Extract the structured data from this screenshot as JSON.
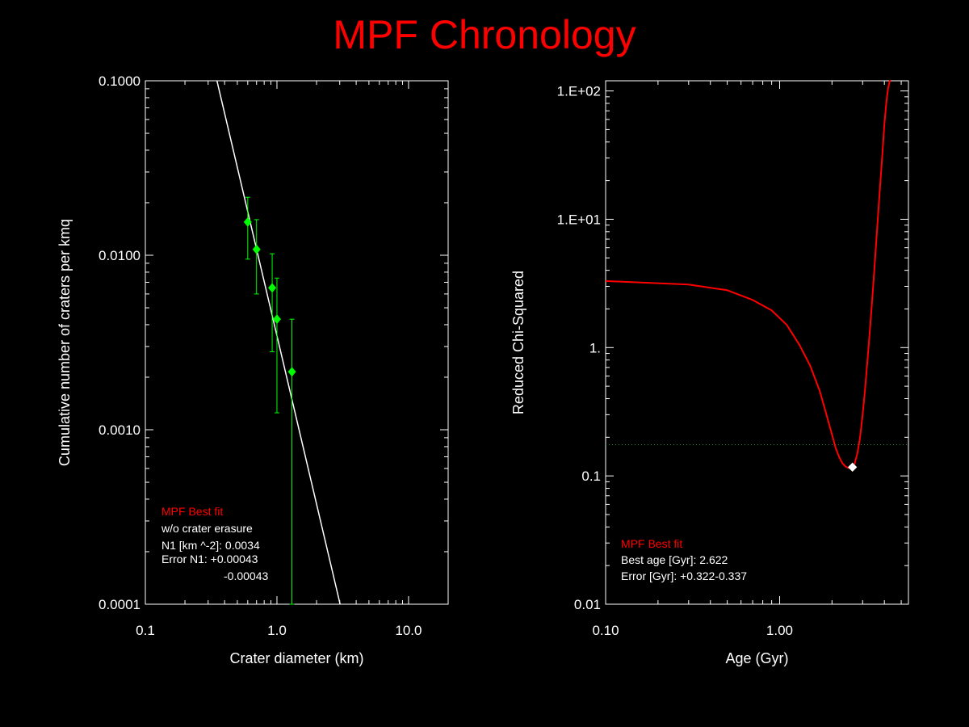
{
  "title": "MPF Chronology",
  "colors": {
    "background": "#000000",
    "title": "#ff0000",
    "axes": "#ffffff",
    "points": "#00ff00",
    "fit_line": "#ffffff",
    "chi_curve": "#ff0000",
    "threshold": "#2a8a2a",
    "min_marker": "#ffffff",
    "legend_heading": "#ff0000",
    "legend_text": "#ffffff"
  },
  "chart_data": [
    {
      "type": "scatter",
      "xlabel": "Crater diameter (km)",
      "ylabel": "Cumulative number of craters per kmq",
      "x_scale": "log",
      "y_scale": "log",
      "xlim": [
        0.1,
        20
      ],
      "ylim": [
        0.0001,
        0.1
      ],
      "x_ticks": [
        {
          "value": 0.1,
          "label": "0.1"
        },
        {
          "value": 1.0,
          "label": "1.0"
        },
        {
          "value": 10.0,
          "label": "10.0"
        }
      ],
      "y_ticks": [
        {
          "value": 0.0001,
          "label": "0.0001"
        },
        {
          "value": 0.001,
          "label": "0.0010"
        },
        {
          "value": 0.01,
          "label": "0.0100"
        },
        {
          "value": 0.1,
          "label": "0.1000"
        }
      ],
      "points": [
        {
          "x": 0.6,
          "y": 0.0155,
          "y_err_low": 0.0095,
          "y_err_high": 0.0215
        },
        {
          "x": 0.7,
          "y": 0.0108,
          "y_err_low": 0.006,
          "y_err_high": 0.016
        },
        {
          "x": 0.92,
          "y": 0.0065,
          "y_err_low": 0.0028,
          "y_err_high": 0.0102
        },
        {
          "x": 1.0,
          "y": 0.0043,
          "y_err_low": 0.00125,
          "y_err_high": 0.0074
        },
        {
          "x": 1.3,
          "y": 0.00215,
          "y_err_low": 0.0001,
          "y_err_high": 0.0043
        }
      ],
      "fit_line": {
        "x": [
          0.35,
          3.02
        ],
        "y": [
          0.1,
          0.0001
        ]
      },
      "legend": {
        "placement": "bottom-left",
        "heading": "MPF Best fit",
        "lines": [
          "w/o crater erasure",
          "N1 [km ^-2]: 0.0034",
          "Error N1: +0.00043",
          "-0.00043"
        ]
      }
    },
    {
      "type": "line",
      "xlabel": "Age (Gyr)",
      "ylabel": "Reduced Chi-Squared",
      "x_scale": "log",
      "y_scale": "log",
      "xlim": [
        0.1,
        5.5
      ],
      "ylim": [
        0.01,
        120
      ],
      "x_ticks": [
        {
          "value": 0.1,
          "label": "0.10"
        },
        {
          "value": 1.0,
          "label": "1.00"
        }
      ],
      "y_ticks": [
        {
          "value": 0.01,
          "label": "0.01"
        },
        {
          "value": 0.1,
          "label": "0.1"
        },
        {
          "value": 1,
          "label": "1."
        },
        {
          "value": 10,
          "label": "1.E+01"
        },
        {
          "value": 100,
          "label": "1.E+02"
        }
      ],
      "series": [
        {
          "x": [
            0.1,
            0.3,
            0.5,
            0.7,
            0.9,
            1.1,
            1.3,
            1.5,
            1.7,
            1.9,
            2.1,
            2.2,
            2.3,
            2.4,
            2.5,
            2.6,
            2.622,
            2.7,
            2.8,
            2.9,
            3.0,
            3.1,
            3.2,
            3.3,
            3.4,
            3.5,
            3.6,
            3.7,
            3.8,
            3.9,
            4.0,
            4.1,
            4.2,
            4.3,
            4.36
          ],
          "y": [
            3.3,
            3.1,
            2.8,
            2.35,
            1.95,
            1.5,
            1.05,
            0.72,
            0.46,
            0.27,
            0.165,
            0.14,
            0.125,
            0.118,
            0.115,
            0.116,
            0.117,
            0.125,
            0.15,
            0.2,
            0.3,
            0.48,
            0.8,
            1.35,
            2.3,
            4.0,
            7.0,
            12.0,
            20.0,
            33.0,
            55.0,
            80.0,
            105.0,
            120.0,
            125.0
          ]
        }
      ],
      "threshold_y": 0.175,
      "minimum": {
        "x": 2.622,
        "y": 0.117
      },
      "legend": {
        "placement": "bottom-left",
        "heading": "MPF Best fit",
        "lines": [
          "Best age [Gyr]: 2.622",
          "Error [Gyr]: +0.322-0.337"
        ]
      }
    }
  ]
}
